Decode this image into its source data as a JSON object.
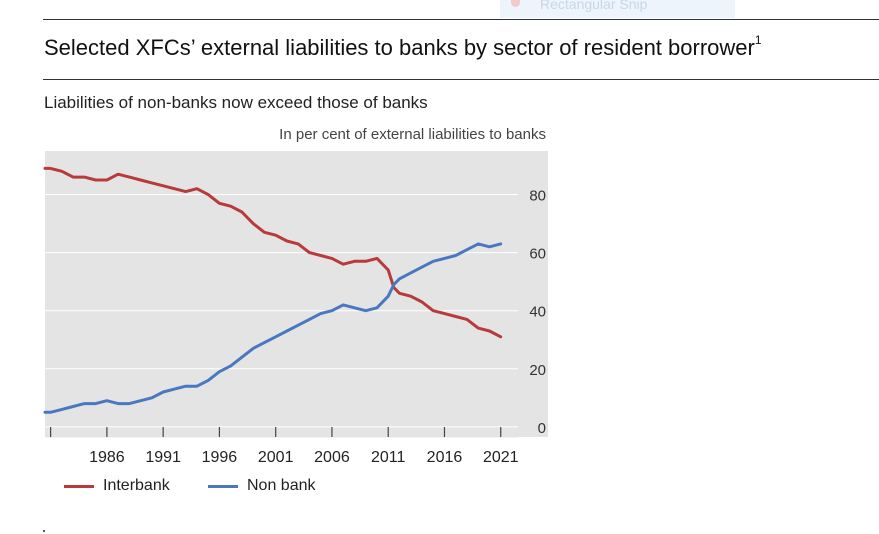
{
  "snip": {
    "label": "Rectangular Snip"
  },
  "title": "Selected XFCs’ external liabilities to banks by sector of resident borrower",
  "title_footnote": "1",
  "subtitle": "Liabilities of non-banks now exceed those of banks",
  "colors": {
    "interbank": "#b83a3a",
    "nonbank": "#4a78c0",
    "plot_bg": "#e4e4e4",
    "grid": "#ffffff"
  },
  "chart_data": {
    "type": "line",
    "title": "Selected XFCs’ external liabilities to banks by sector of resident borrower",
    "subtitle": "Liabilities of non-banks now exceed those of banks",
    "ylabel": "In per cent of external liabilities to banks",
    "xlim": [
      1980.5,
      2025.2
    ],
    "ylim": [
      -3.5,
      95
    ],
    "x_ticks": [
      1986,
      1991,
      1996,
      2001,
      2006,
      2011,
      2016,
      2021
    ],
    "y_ticks": [
      0,
      20,
      40,
      60,
      80
    ],
    "grid": "horizontal",
    "y_axis_side": "right",
    "legend_position": "bottom",
    "series": [
      {
        "name": "Interbank",
        "x": [
          1980.5,
          1981,
          1982,
          1983,
          1984,
          1985,
          1986,
          1987,
          1988,
          1989,
          1990,
          1991,
          1992,
          1993,
          1994,
          1995,
          1996,
          1997,
          1998,
          1999,
          2000,
          2001,
          2002,
          2003,
          2004,
          2005,
          2006,
          2007,
          2008,
          2009,
          2010,
          2011,
          2011.5,
          2012,
          2013,
          2014,
          2015,
          2016,
          2017,
          2018,
          2019,
          2020,
          2021
        ],
        "values": [
          89,
          89,
          88,
          86,
          86,
          85,
          85,
          87,
          86,
          85,
          84,
          83,
          82,
          81,
          82,
          80,
          77,
          76,
          74,
          70,
          67,
          66,
          64,
          63,
          60,
          59,
          58,
          56,
          57,
          57,
          58,
          54,
          48,
          46,
          45,
          43,
          40,
          39,
          38,
          37,
          34,
          33,
          31
        ]
      },
      {
        "name": "Non bank",
        "x": [
          1980.5,
          1981,
          1982,
          1983,
          1984,
          1985,
          1986,
          1987,
          1988,
          1989,
          1990,
          1991,
          1992,
          1993,
          1994,
          1995,
          1996,
          1997,
          1998,
          1999,
          2000,
          2001,
          2002,
          2003,
          2004,
          2005,
          2006,
          2007,
          2008,
          2009,
          2010,
          2011,
          2011.5,
          2012,
          2013,
          2014,
          2015,
          2016,
          2017,
          2018,
          2019,
          2020,
          2021
        ],
        "values": [
          5,
          5,
          6,
          7,
          8,
          8,
          9,
          8,
          8,
          9,
          10,
          12,
          13,
          14,
          14,
          16,
          19,
          21,
          24,
          27,
          29,
          31,
          33,
          35,
          37,
          39,
          40,
          42,
          41,
          40,
          41,
          45,
          49,
          51,
          53,
          55,
          57,
          58,
          59,
          61,
          63,
          62,
          63
        ]
      }
    ]
  }
}
